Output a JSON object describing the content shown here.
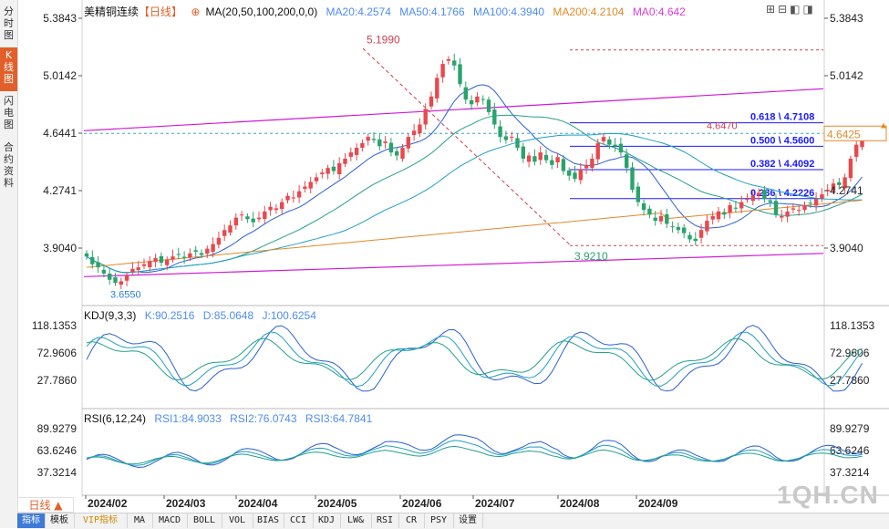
{
  "left_tabs": [
    {
      "label": "分时图",
      "active": false
    },
    {
      "label": "K线图",
      "active": true
    },
    {
      "label": "闪电图",
      "active": false
    },
    {
      "label": "合约资料",
      "active": false
    }
  ],
  "header": {
    "title": "美精铜连续",
    "period": "【日线】",
    "ma_params": "MA(20,50,100,200,0,0)",
    "ma20": "MA20:4.2574",
    "ma50": "MA50:4.1766",
    "ma100": "MA100:4.3940",
    "ma200": "MA200:4.2104",
    "ma0": "MA0:4.642"
  },
  "colors": {
    "up": "#e8484e",
    "down": "#2aa36b",
    "ma20": "#2a5fd6",
    "ma50": "#24a08a",
    "ma100": "#1f9fc4",
    "ma200": "#e08a2c",
    "ma0": "#d43fd8",
    "channel": "#d019d8",
    "fib": "#1a1aff",
    "accent": "#e25f2a"
  },
  "price_axis": {
    "labels": [
      "5.3843",
      "5.0142",
      "4.6441",
      "4.2741",
      "3.9040"
    ],
    "current_price": "4.6425",
    "min": 3.6,
    "max": 5.4
  },
  "date_axis": [
    "2024/02",
    "2024/03",
    "2024/04",
    "2024/05",
    "2024/06",
    "2024/07",
    "2024/08",
    "2024/09"
  ],
  "annotations": {
    "high": "5.1990",
    "low_major": "3.9210",
    "low_start": "3.6550",
    "last_high": "4.6470"
  },
  "fib_levels": [
    {
      "label": "0.618 \\ 4.7108",
      "value": 4.7108
    },
    {
      "label": "0.500 \\ 4.5600",
      "value": 4.56
    },
    {
      "label": "0.382 \\ 4.4092",
      "value": 4.4092
    },
    {
      "label": "0.236 \\ 4.2226",
      "value": 4.2226
    }
  ],
  "kdj": {
    "title": "KDJ(9,3,3)",
    "k": "K:90.2516",
    "d": "D:85.0648",
    "j": "J:100.6254",
    "labels": [
      "118.1353",
      "72.9606",
      "27.7860"
    ]
  },
  "rsi": {
    "title": "RSI(6,12,24)",
    "rsi1": "RSI1:84.9033",
    "rsi2": "RSI2:76.0743",
    "rsi3": "RSI3:64.7841",
    "labels": [
      "89.9279",
      "63.6246",
      "37.3214"
    ]
  },
  "period_button": "日线 ▲",
  "bottom_tabs": [
    "指标",
    "模板",
    "VIP指标",
    "MA",
    "MACD",
    "BOLL",
    "VOL",
    "BIAS",
    "CCI",
    "KDJ",
    "LW&",
    "RSI",
    "CR",
    "PSY",
    "设置"
  ],
  "watermark": "1QH.CN",
  "chart_data": {
    "type": "candlestick",
    "title": "美精铜连续 日线",
    "ylim": [
      3.6,
      5.4
    ],
    "closes": [
      3.85,
      3.8,
      3.78,
      3.74,
      3.7,
      3.68,
      3.69,
      3.73,
      3.77,
      3.78,
      3.8,
      3.82,
      3.84,
      3.81,
      3.83,
      3.85,
      3.86,
      3.84,
      3.87,
      3.88,
      3.86,
      3.9,
      3.93,
      3.97,
      4.02,
      4.05,
      4.1,
      4.12,
      4.09,
      4.07,
      4.1,
      4.14,
      4.17,
      4.16,
      4.2,
      4.24,
      4.23,
      4.27,
      4.3,
      4.33,
      4.36,
      4.39,
      4.42,
      4.4,
      4.45,
      4.48,
      4.52,
      4.55,
      4.58,
      4.62,
      4.6,
      4.56,
      4.59,
      4.52,
      4.5,
      4.55,
      4.62,
      4.66,
      4.7,
      4.8,
      4.88,
      5.0,
      5.09,
      5.12,
      5.08,
      4.96,
      4.86,
      4.83,
      4.88,
      4.86,
      4.78,
      4.7,
      4.62,
      4.6,
      4.62,
      4.55,
      4.48,
      4.5,
      4.46,
      4.52,
      4.47,
      4.44,
      4.49,
      4.4,
      4.37,
      4.35,
      4.41,
      4.44,
      4.48,
      4.58,
      4.62,
      4.57,
      4.56,
      4.52,
      4.42,
      4.28,
      4.2,
      4.15,
      4.12,
      4.08,
      4.11,
      4.06,
      4.04,
      4.02,
      4.0,
      3.96,
      3.95,
      4.02,
      4.08,
      4.11,
      4.14,
      4.12,
      4.18,
      4.16,
      4.2,
      4.22,
      4.24,
      4.26,
      4.22,
      4.2,
      4.12,
      4.11,
      4.14,
      4.16,
      4.15,
      4.18,
      4.19,
      4.22,
      4.25,
      4.28,
      4.32,
      4.31,
      4.36,
      4.48,
      4.57,
      4.64
    ]
  }
}
